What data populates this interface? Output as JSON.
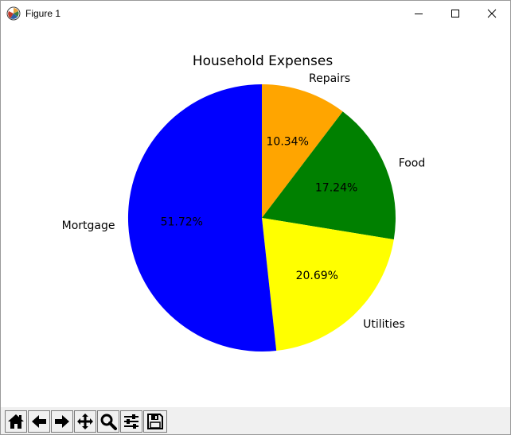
{
  "window": {
    "title": "Figure 1",
    "icons": {
      "app": "matplotlib-logo-icon",
      "minimize": "minimize-icon",
      "maximize": "maximize-icon",
      "close": "close-icon"
    }
  },
  "toolbar": {
    "buttons": [
      {
        "name": "home-button",
        "icon": "home-icon"
      },
      {
        "name": "back-button",
        "icon": "arrow-left-icon"
      },
      {
        "name": "forward-button",
        "icon": "arrow-right-icon"
      },
      {
        "name": "pan-button",
        "icon": "move-icon"
      },
      {
        "name": "zoom-button",
        "icon": "magnifier-icon"
      },
      {
        "name": "subplots-button",
        "icon": "sliders-icon"
      },
      {
        "name": "save-button",
        "icon": "floppy-disk-icon"
      }
    ]
  },
  "chart_data": {
    "type": "pie",
    "title": "Household Expenses",
    "start_angle_deg": 90,
    "direction": "clockwise",
    "slices": [
      {
        "label": "Repairs",
        "value": 10.34,
        "pct_text": "10.34%",
        "color": "#FFA500"
      },
      {
        "label": "Food",
        "value": 17.24,
        "pct_text": "17.24%",
        "color": "#008000"
      },
      {
        "label": "Utilities",
        "value": 20.69,
        "pct_text": "20.69%",
        "color": "#FFFF00"
      },
      {
        "label": "Mortgage",
        "value": 51.72,
        "pct_text": "51.72%",
        "color": "#0000FF"
      }
    ]
  }
}
